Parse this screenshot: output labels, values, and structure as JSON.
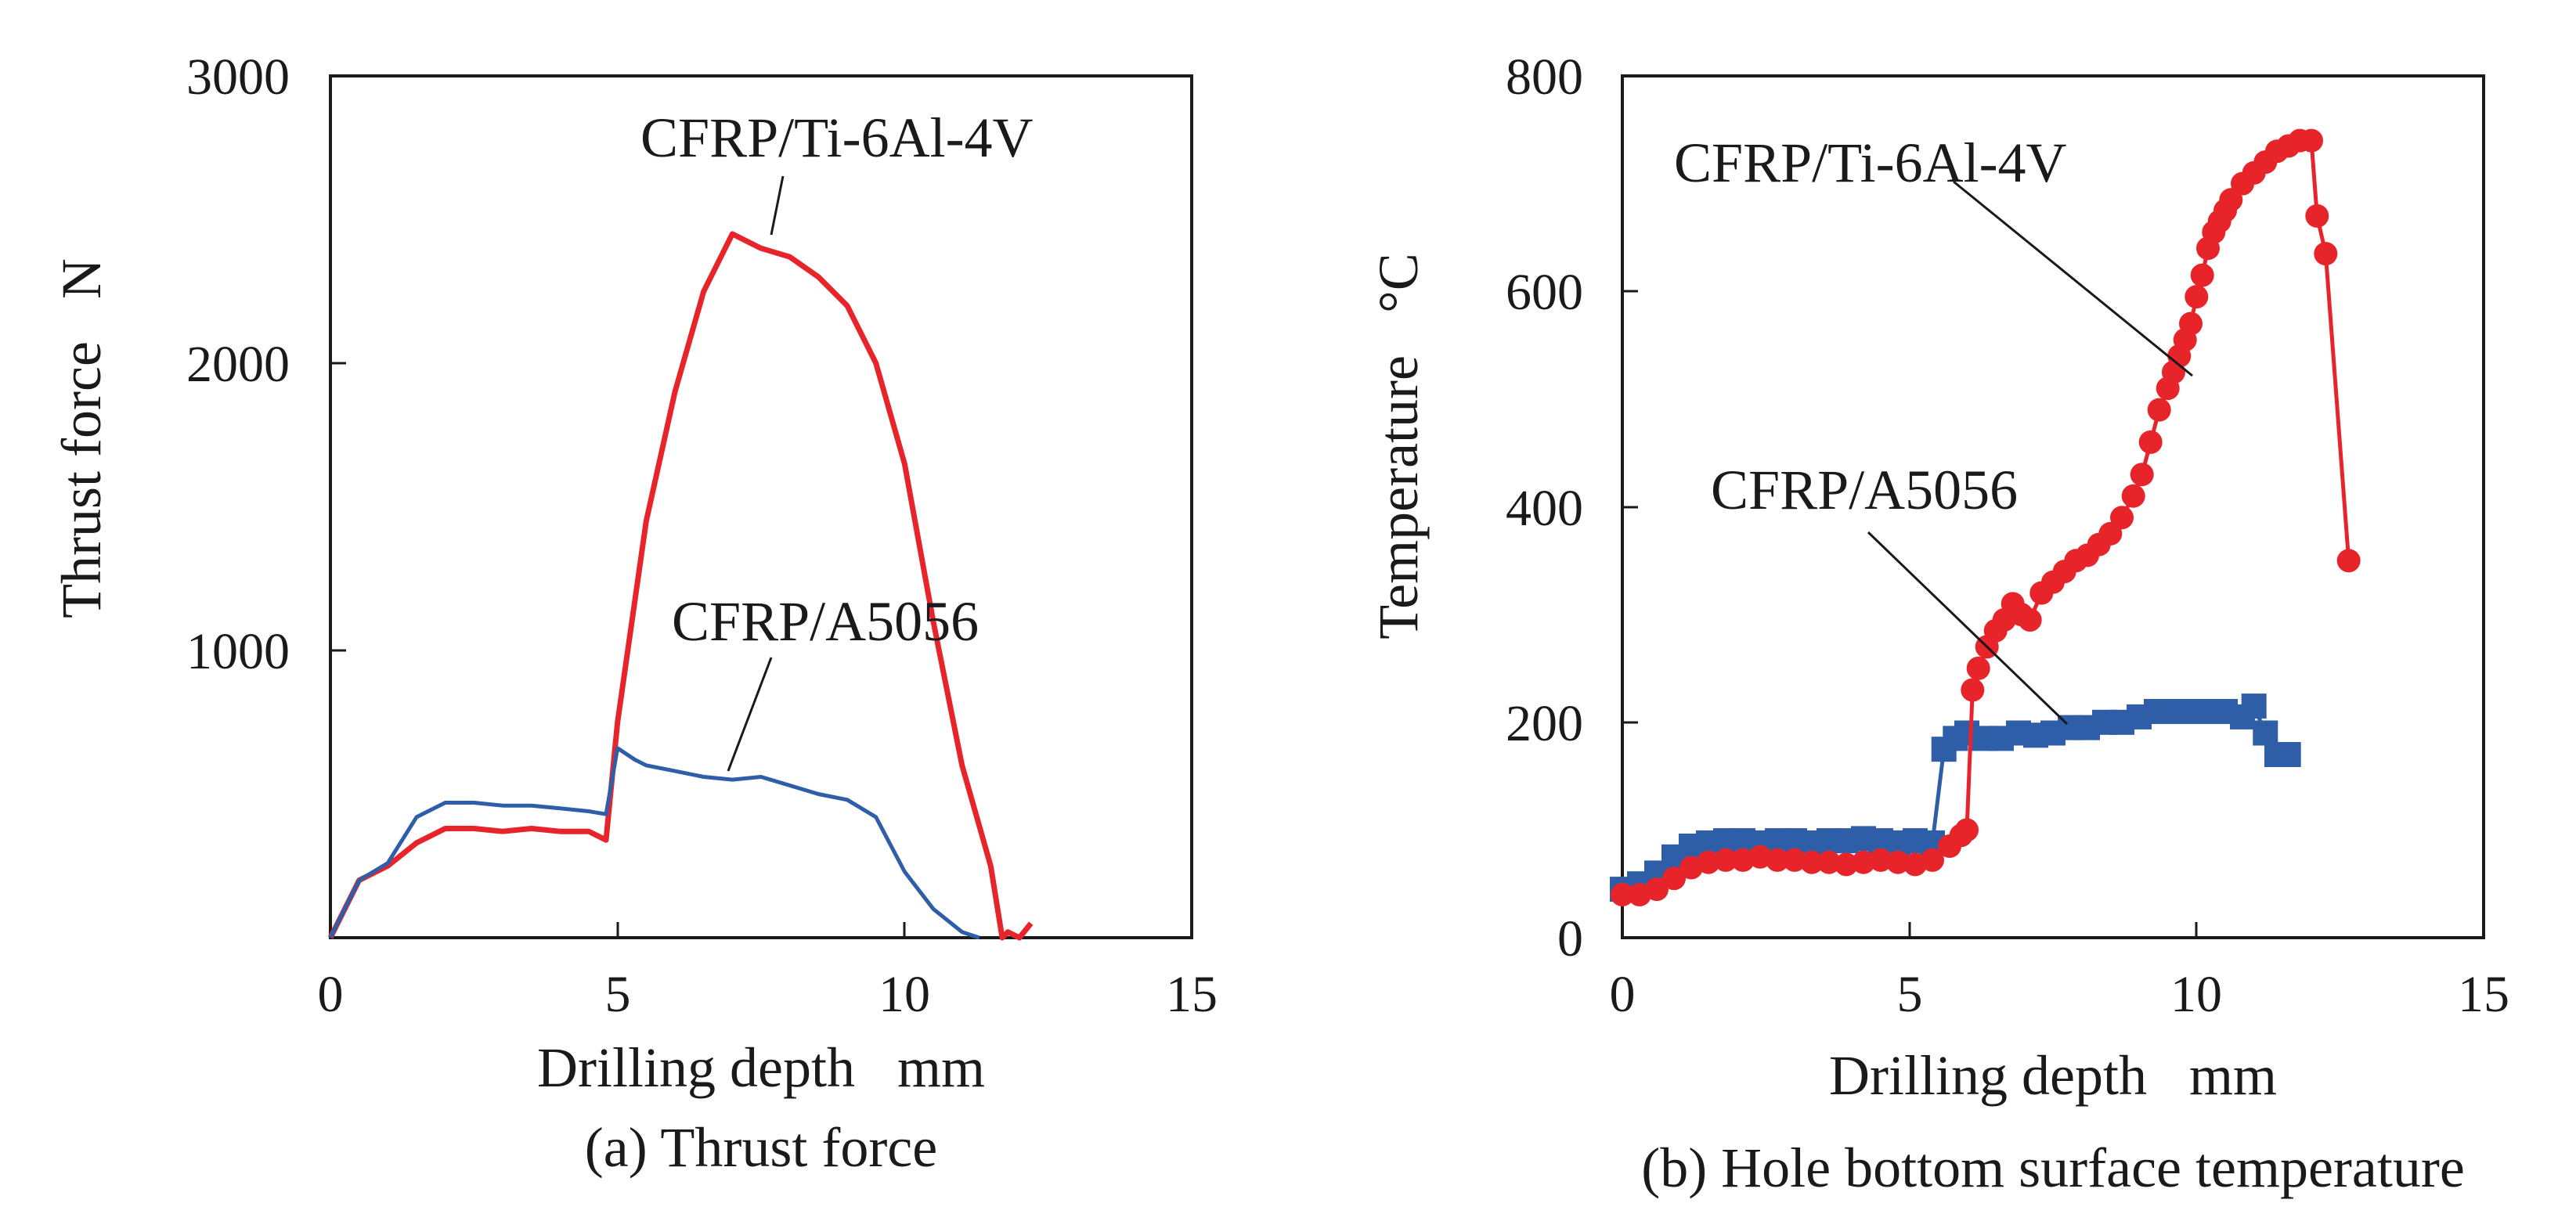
{
  "chart_data": [
    {
      "id": "a",
      "type": "line",
      "caption": "(a) Thrust force",
      "xlabel": "Drilling depth   mm",
      "ylabel": "Thrust force   N",
      "xlim": [
        0,
        15
      ],
      "ylim": [
        0,
        3000
      ],
      "xticks": [
        "0",
        "5",
        "10",
        "15"
      ],
      "yticks": [
        "1000",
        "2000",
        "3000"
      ],
      "grid": false,
      "colors": {
        "ti": "#e8242b",
        "al": "#2e5ea8"
      },
      "series": [
        {
          "name": "CFRP/Ti-6Al-4V",
          "color_key": "ti",
          "marker": "none",
          "x": [
            0.0,
            0.5,
            1.0,
            1.5,
            2.0,
            2.5,
            3.0,
            3.5,
            4.0,
            4.5,
            4.8,
            5.0,
            5.5,
            6.0,
            6.5,
            7.0,
            7.5,
            8.0,
            8.5,
            9.0,
            9.5,
            10.0,
            10.5,
            11.0,
            11.5,
            11.7,
            11.8,
            12.0,
            12.2
          ],
          "y": [
            0,
            200,
            250,
            330,
            380,
            380,
            370,
            380,
            370,
            370,
            340,
            750,
            1450,
            1900,
            2250,
            2450,
            2400,
            2370,
            2300,
            2200,
            2000,
            1650,
            1100,
            600,
            250,
            0,
            20,
            0,
            50
          ]
        },
        {
          "name": "CFRP/A5056",
          "color_key": "al",
          "marker": "none",
          "x": [
            0.0,
            0.5,
            1.0,
            1.5,
            2.0,
            2.5,
            3.0,
            3.5,
            4.0,
            4.5,
            4.8,
            5.0,
            5.3,
            5.5,
            6.0,
            6.5,
            7.0,
            7.5,
            8.0,
            8.5,
            9.0,
            9.5,
            10.0,
            10.5,
            11.0,
            11.3
          ],
          "y": [
            0,
            200,
            260,
            420,
            470,
            470,
            460,
            460,
            450,
            440,
            430,
            660,
            620,
            600,
            580,
            560,
            550,
            560,
            530,
            500,
            480,
            420,
            230,
            100,
            20,
            0
          ]
        }
      ],
      "annotations": [
        {
          "text": "CFRP/Ti-6Al-4V",
          "series": "CFRP/Ti-6Al-4V"
        },
        {
          "text": "CFRP/A5056",
          "series": "CFRP/A5056"
        }
      ]
    },
    {
      "id": "b",
      "type": "scatter",
      "caption": "(b) Hole bottom surface temperature",
      "xlabel": "Drilling depth   mm",
      "ylabel": "Temperature   °C",
      "xlim": [
        0,
        15
      ],
      "ylim": [
        0,
        800
      ],
      "xticks": [
        "0",
        "5",
        "10",
        "15"
      ],
      "yticks": [
        "0",
        "200",
        "400",
        "600",
        "800"
      ],
      "grid": false,
      "colors": {
        "ti": "#e8242b",
        "al": "#2e5ea8"
      },
      "series": [
        {
          "name": "CFRP/A5056",
          "color_key": "al",
          "marker": "square",
          "x": [
            0.0,
            0.3,
            0.6,
            0.9,
            1.2,
            1.5,
            1.8,
            2.1,
            2.4,
            2.7,
            3.0,
            3.3,
            3.6,
            3.9,
            4.2,
            4.5,
            4.8,
            5.1,
            5.4,
            5.6,
            5.8,
            6.0,
            6.3,
            6.6,
            6.9,
            7.2,
            7.5,
            7.8,
            8.1,
            8.4,
            8.7,
            9.0,
            9.3,
            9.6,
            9.9,
            10.2,
            10.5,
            10.8,
            11.0,
            11.2,
            11.4,
            11.6
          ],
          "y": [
            45,
            50,
            60,
            75,
            85,
            88,
            90,
            90,
            88,
            90,
            90,
            88,
            90,
            90,
            92,
            90,
            88,
            90,
            88,
            175,
            185,
            190,
            185,
            185,
            190,
            188,
            190,
            195,
            195,
            200,
            200,
            205,
            210,
            210,
            210,
            210,
            210,
            205,
            215,
            190,
            170,
            170
          ]
        },
        {
          "name": "CFRP/Ti-6Al-4V",
          "color_key": "ti",
          "marker": "circle",
          "x": [
            0.0,
            0.3,
            0.6,
            0.9,
            1.2,
            1.5,
            1.8,
            2.1,
            2.4,
            2.7,
            3.0,
            3.3,
            3.6,
            3.9,
            4.2,
            4.5,
            4.8,
            5.1,
            5.4,
            5.7,
            5.9,
            6.0,
            6.1,
            6.2,
            6.35,
            6.5,
            6.65,
            6.8,
            6.95,
            7.1,
            7.3,
            7.5,
            7.7,
            7.9,
            8.1,
            8.3,
            8.5,
            8.7,
            8.9,
            9.05,
            9.2,
            9.35,
            9.5,
            9.6,
            9.7,
            9.8,
            9.9,
            10.0,
            10.1,
            10.2,
            10.3,
            10.4,
            10.5,
            10.6,
            10.8,
            11.0,
            11.2,
            11.4,
            11.6,
            11.8,
            12.0,
            12.1,
            12.25,
            12.65
          ],
          "y": [
            40,
            40,
            45,
            55,
            65,
            70,
            72,
            72,
            75,
            72,
            72,
            70,
            70,
            68,
            70,
            72,
            70,
            68,
            72,
            85,
            95,
            100,
            230,
            250,
            270,
            285,
            295,
            310,
            300,
            295,
            320,
            330,
            340,
            350,
            355,
            365,
            375,
            390,
            410,
            430,
            460,
            490,
            510,
            525,
            540,
            555,
            570,
            595,
            615,
            640,
            655,
            665,
            675,
            685,
            700,
            710,
            720,
            730,
            735,
            740,
            740,
            670,
            635,
            350
          ]
        }
      ],
      "annotations": [
        {
          "text": "CFRP/Ti-6Al-4V",
          "series": "CFRP/Ti-6Al-4V"
        },
        {
          "text": "CFRP/A5056",
          "series": "CFRP/A5056"
        }
      ]
    }
  ]
}
